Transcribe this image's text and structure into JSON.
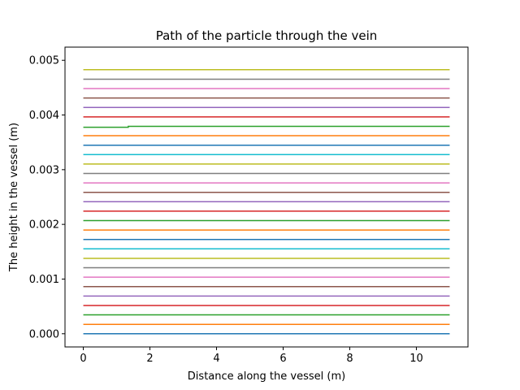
{
  "chart_data": {
    "type": "line",
    "title": "Path of the particle through the vein",
    "xlabel": "Distance along the vessel (m)",
    "ylabel": "The height in the vessel (m)",
    "xlim": [
      -0.55,
      11.55
    ],
    "ylim": [
      -0.000241,
      0.005241
    ],
    "x_ticks": [
      0,
      2,
      4,
      6,
      8,
      10
    ],
    "x_tick_labels": [
      "0",
      "2",
      "4",
      "6",
      "8",
      "10"
    ],
    "y_ticks": [
      0,
      0.001,
      0.002,
      0.003,
      0.004,
      0.005
    ],
    "y_tick_labels": [
      "0.000",
      "0.001",
      "0.002",
      "0.003",
      "0.004",
      "0.005"
    ],
    "grid": false,
    "legend": false,
    "series": [
      {
        "color": "#1f77b4",
        "x": [
          0,
          11
        ],
        "y": [
          0.0,
          0.0
        ]
      },
      {
        "color": "#ff7f0e",
        "x": [
          0,
          11
        ],
        "y": [
          0.000172,
          0.000172
        ]
      },
      {
        "color": "#2ca02c",
        "x": [
          0,
          11
        ],
        "y": [
          0.000345,
          0.000345
        ]
      },
      {
        "color": "#d62728",
        "x": [
          0,
          11
        ],
        "y": [
          0.000517,
          0.000517
        ]
      },
      {
        "color": "#9467bd",
        "x": [
          0,
          11
        ],
        "y": [
          0.00069,
          0.00069
        ]
      },
      {
        "color": "#8c564b",
        "x": [
          0,
          11
        ],
        "y": [
          0.000862,
          0.000862
        ]
      },
      {
        "color": "#e377c2",
        "x": [
          0,
          11
        ],
        "y": [
          0.001034,
          0.001034
        ]
      },
      {
        "color": "#7f7f7f",
        "x": [
          0,
          11
        ],
        "y": [
          0.001207,
          0.001207
        ]
      },
      {
        "color": "#bcbd22",
        "x": [
          0,
          11
        ],
        "y": [
          0.001379,
          0.001379
        ]
      },
      {
        "color": "#17becf",
        "x": [
          0,
          11
        ],
        "y": [
          0.001552,
          0.001552
        ]
      },
      {
        "color": "#1f77b4",
        "x": [
          0,
          11
        ],
        "y": [
          0.001724,
          0.001724
        ]
      },
      {
        "color": "#ff7f0e",
        "x": [
          0,
          11
        ],
        "y": [
          0.001897,
          0.001897
        ]
      },
      {
        "color": "#2ca02c",
        "x": [
          0,
          11
        ],
        "y": [
          0.002069,
          0.002069
        ]
      },
      {
        "color": "#d62728",
        "x": [
          0,
          11
        ],
        "y": [
          0.002241,
          0.002241
        ]
      },
      {
        "color": "#9467bd",
        "x": [
          0,
          11
        ],
        "y": [
          0.002414,
          0.002414
        ]
      },
      {
        "color": "#8c564b",
        "x": [
          0,
          11
        ],
        "y": [
          0.002586,
          0.002586
        ]
      },
      {
        "color": "#e377c2",
        "x": [
          0,
          11
        ],
        "y": [
          0.002759,
          0.002759
        ]
      },
      {
        "color": "#7f7f7f",
        "x": [
          0,
          11
        ],
        "y": [
          0.002931,
          0.002931
        ]
      },
      {
        "color": "#bcbd22",
        "x": [
          0,
          11
        ],
        "y": [
          0.003103,
          0.003103
        ]
      },
      {
        "color": "#17becf",
        "x": [
          0,
          11
        ],
        "y": [
          0.003276,
          0.003276
        ]
      },
      {
        "color": "#1f77b4",
        "x": [
          0,
          11
        ],
        "y": [
          0.003448,
          0.003448
        ]
      },
      {
        "color": "#ff7f0e",
        "x": [
          0,
          11
        ],
        "y": [
          0.003621,
          0.003621
        ]
      },
      {
        "color": "#2ca02c",
        "x": [
          0,
          1.35,
          1.35,
          11
        ],
        "y": [
          0.003775,
          0.003775,
          0.003793,
          0.003793
        ]
      },
      {
        "color": "#d62728",
        "x": [
          0,
          11
        ],
        "y": [
          0.003966,
          0.003966
        ]
      },
      {
        "color": "#9467bd",
        "x": [
          0,
          11
        ],
        "y": [
          0.004138,
          0.004138
        ]
      },
      {
        "color": "#8c564b",
        "x": [
          0,
          11
        ],
        "y": [
          0.00431,
          0.00431
        ]
      },
      {
        "color": "#e377c2",
        "x": [
          0,
          11
        ],
        "y": [
          0.004483,
          0.004483
        ]
      },
      {
        "color": "#7f7f7f",
        "x": [
          0,
          11
        ],
        "y": [
          0.004655,
          0.004655
        ]
      },
      {
        "color": "#bcbd22",
        "x": [
          0,
          11
        ],
        "y": [
          0.004828,
          0.004828
        ]
      }
    ]
  }
}
